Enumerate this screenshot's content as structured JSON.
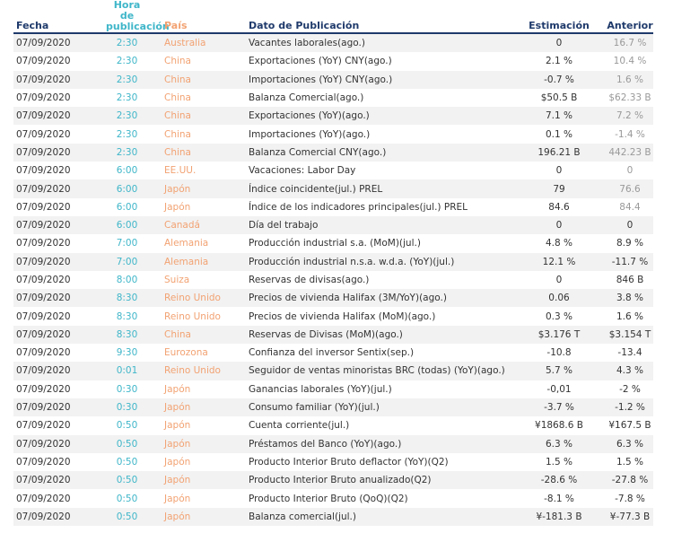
{
  "table": {
    "header": [
      "Fecha",
      "Hora de publicación",
      "País",
      "Dato de Publicación",
      "Estimación",
      "Anterior"
    ],
    "rows": [
      [
        "07/09/2020",
        "2:30",
        "Australia",
        "Vacantes laborales(ago.)",
        "0",
        "16.7 %"
      ],
      [
        "07/09/2020",
        "2:30",
        "China",
        "Exportaciones (YoY) CNY(ago.)",
        "2.1 %",
        "10.4 %"
      ],
      [
        "07/09/2020",
        "2:30",
        "China",
        "Importaciones (YoY) CNY(ago.)",
        "-0.7 %",
        "1.6 %"
      ],
      [
        "07/09/2020",
        "2:30",
        "China",
        "Balanza Comercial(ago.)",
        "$50.5 B",
        "$62.33 B"
      ],
      [
        "07/09/2020",
        "2:30",
        "China",
        "Exportaciones (YoY)(ago.)",
        "7.1 %",
        "7.2 %"
      ],
      [
        "07/09/2020",
        "2:30",
        "China",
        "Importaciones (YoY)(ago.)",
        "0.1 %",
        "-1.4 %"
      ],
      [
        "07/09/2020",
        "2:30",
        "China",
        "Balanza Comercial CNY(ago.)",
        "196.21 B",
        "442.23 B"
      ],
      [
        "07/09/2020",
        "6:00",
        "EE.UU.",
        "Vacaciones: Labor Day",
        "0",
        "0"
      ],
      [
        "07/09/2020",
        "6:00",
        "Japón",
        "Índice coincidente(jul.) PREL",
        "79",
        "76.6"
      ],
      [
        "07/09/2020",
        "6:00",
        "Japón",
        "Índice de los indicadores principales(jul.) PREL",
        "84.6",
        "84.4"
      ],
      [
        "07/09/2020",
        "6:00",
        "Canadá",
        "Día del trabajo",
        "0",
        "0"
      ],
      [
        "07/09/2020",
        "7:00",
        "Alemania",
        "Producción industrial s.a. (MoM)(jul.)",
        "4.8 %",
        "8.9 %"
      ],
      [
        "07/09/2020",
        "7:00",
        "Alemania",
        "Producción industrial n.s.a. w.d.a. (YoY)(jul.)",
        "12.1 %",
        "-11.7 %"
      ],
      [
        "07/09/2020",
        "8:00",
        "Suiza",
        "Reservas de divisas(ago.)",
        "0",
        "846 B"
      ],
      [
        "07/09/2020",
        "8:30",
        "Reino Unido",
        "Precios de vivienda Halifax (3M/YoY)(ago.)",
        "0.06",
        "3.8 %"
      ],
      [
        "07/09/2020",
        "8:30",
        "Reino Unido",
        "Precios de vivienda Halifax (MoM)(ago.)",
        "0.3 %",
        "1.6 %"
      ],
      [
        "07/09/2020",
        "8:30",
        "China",
        "Reservas de Divisas (MoM)(ago.)",
        "$3.176 T",
        "$3.154 T"
      ],
      [
        "07/09/2020",
        "9:30",
        "Eurozona",
        "Confianza del inversor Sentix(sep.)",
        "-10.8",
        "-13.4"
      ],
      [
        "07/09/2020",
        "0:01",
        "Reino Unido",
        "Seguidor de ventas minoristas BRC (todas) (YoY)(ago.)",
        "5.7 %",
        "4.3 %"
      ],
      [
        "07/09/2020",
        "0:30",
        "Japón",
        "Ganancias laborales (YoY)(jul.)",
        "-0,01",
        "-2 %"
      ],
      [
        "07/09/2020",
        "0:30",
        "Japón",
        "Consumo familiar (YoY)(jul.)",
        "-3.7 %",
        "-1.2 %"
      ],
      [
        "07/09/2020",
        "0:50",
        "Japón",
        "Cuenta corriente(jul.)",
        "¥1868.6 B",
        "¥167.5 B"
      ],
      [
        "07/09/2020",
        "0:50",
        "Japón",
        "Préstamos del Banco (YoY)(ago.)",
        "6.3 %",
        "6.3 %"
      ],
      [
        "07/09/2020",
        "0:50",
        "Japón",
        "Producto Interior Bruto deflactor (YoY)(Q2)",
        "1.5 %",
        "1.5 %"
      ],
      [
        "07/09/2020",
        "0:50",
        "Japón",
        "Producto Interior Bruto anualizado(Q2)",
        "-28.6 %",
        "-27.8 %"
      ],
      [
        "07/09/2020",
        "0:50",
        "Japón",
        "Producto Interior Bruto (QoQ)(Q2)",
        "-8.1 %",
        "-7.8 %"
      ],
      [
        "07/09/2020",
        "0:50",
        "Japón",
        "Balanza comercial(jul.)",
        "¥-181.3 B",
        "¥-77.3 B"
      ]
    ]
  }
}
